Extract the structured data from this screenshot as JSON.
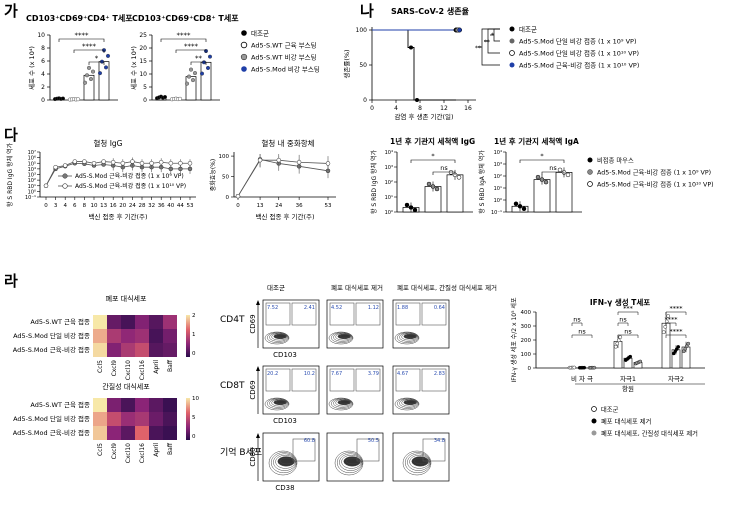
{
  "panels": {
    "ga": {
      "letter": "가",
      "title_left": "CD103⁺CD69⁺CD4⁺ T세포",
      "title_right": "CD103⁺CD69⁺CD8⁺ T세포",
      "ylabel": "세포 수 (x 10⁴)",
      "left_yticks": [
        "0",
        "2",
        "4",
        "6",
        "8",
        "10"
      ],
      "right_yticks": [
        "0",
        "5",
        "10",
        "15",
        "20",
        "25"
      ],
      "legend": [
        "대조군",
        "Ad5-S.WT 근육 부스팅",
        "Ad5-S.WT 비강 부스팅",
        "Ad5-S.Mod 비강 부스팅"
      ],
      "sig_left": [
        "****",
        "****",
        "*"
      ],
      "sig_right": [
        "****",
        "****",
        "**"
      ],
      "chart_data": {
        "type": "bar",
        "categories": [
          "대조군",
          "Ad5-S.WT 근육 부스팅",
          "Ad5-S.WT 비강 부스팅",
          "Ad5-S.Mod 비강 부스팅"
        ],
        "series": [
          {
            "values": [
              0.2,
              0.1,
              3.8,
              5.9
            ]
          },
          {
            "values": [
              1.0,
              0.4,
              9.0,
              14.5
            ]
          }
        ]
      }
    },
    "na": {
      "letter": "나",
      "title": "SARS-CoV-2 생존율",
      "ylabel": "생존률(%)",
      "xlabel": "감염 후 생존 기간(일)",
      "yticks": [
        "0",
        "50",
        "100"
      ],
      "xticks": [
        "0",
        "4",
        "8",
        "12",
        "16"
      ],
      "legend": [
        "대조군",
        "Ad5-S.Mod 단일 비강 접종 (1 x 10⁹ VP)",
        "Ad5-S.Mod 단일 비강 접종 (1 x 10¹⁰ VP)",
        "Ad5-S.Mod 근육-비강 접종 (1 x 10¹⁰ VP)"
      ],
      "sig": [
        "*",
        "**",
        "**"
      ],
      "chart_data": {
        "type": "line",
        "xlabel": "감염 후 생존 기간(일)",
        "ylabel": "생존률(%)",
        "series": [
          {
            "name": "대조군",
            "x": [
              0,
              6,
              6,
              7,
              7,
              14
            ],
            "y": [
              100,
              100,
              75,
              75,
              0,
              0
            ]
          },
          {
            "name": "Ad5-S.Mod 단일 비강 접종 (1 x 10⁹ VP)",
            "x": [
              0,
              14
            ],
            "y": [
              100,
              100
            ]
          },
          {
            "name": "Ad5-S.Mod 단일 비강 접종 (1 x 10¹⁰ VP)",
            "x": [
              0,
              14
            ],
            "y": [
              100,
              100
            ]
          },
          {
            "name": "Ad5-S.Mod 근육-비강 접종 (1 x 10¹⁰ VP)",
            "x": [
              0,
              14
            ],
            "y": [
              100,
              100
            ]
          }
        ]
      }
    },
    "da": {
      "letter": "다",
      "igg_title": "혈청 IgG",
      "igg_ylabel": "항 S RBD IgG 항체 역가",
      "igg_xlabel": "백신 접종 후 기간(주)",
      "igg_xticks": [
        "0",
        "3",
        "4",
        "6",
        "8",
        "10",
        "13",
        "16",
        "20",
        "24",
        "28",
        "32",
        "36",
        "40",
        "44",
        "53"
      ],
      "igg_yticks": [
        "10⁻¹",
        "10⁰",
        "10¹",
        "10²",
        "10³",
        "10⁴",
        "10⁵",
        "10⁶",
        "10⁷"
      ],
      "igg_legend": [
        "Ad5-S.Mod 근육-비강 접종 (1 x 10⁹ VP)",
        "Ad5-S.Mod 근육-비강 접종 (1 x 10¹⁰ VP)"
      ],
      "neut_title": "혈청 내 중화항체",
      "neut_ylabel": "중화효능(%)",
      "neut_xticks": [
        "0",
        "13",
        "24",
        "36",
        "53"
      ],
      "neut_yticks": [
        "0",
        "50",
        "100"
      ],
      "bal_igg_title": "1년 후 기관지 세척액 IgG",
      "bal_igg_ylabel": "항 S RBD IgG 항체 역가",
      "bal_igg_yticks": [
        "10⁰",
        "10¹",
        "10²",
        "10³",
        "10⁴"
      ],
      "bal_iga_title": "1년 후 기관지 세척액 IgA",
      "bal_iga_ylabel": "항 S RBD IgA 항체 역가",
      "bal_iga_yticks": [
        "10⁻¹",
        "10⁰",
        "10¹",
        "10²",
        "10³",
        "10⁴"
      ],
      "bal_legend": [
        "비접종 마우스",
        "Ad5-S.Mod 근육-비강 접종 (1 x 10⁹ VP)",
        "Ad5-S.Mod 근육-비강 접종 (1 x 10¹⁰ VP)"
      ],
      "sig_bal_igg": [
        "*",
        "ns"
      ],
      "sig_bal_iga": [
        "*",
        "ns"
      ],
      "chart_data": [
        {
          "type": "line",
          "title": "혈청 IgG",
          "xlabel": "백신 접종 후 기간(주)",
          "ylabel": "항 S RBD IgG 항체 역가",
          "x": [
            0,
            3,
            4,
            6,
            8,
            10,
            13,
            16,
            20,
            24,
            28,
            32,
            36,
            40,
            44,
            53
          ],
          "series": [
            {
              "name": "Ad5-S.Mod 근육-비강 접종 (1 x 10⁹ VP)",
              "values": [
                10,
                10000,
                30000,
                100000,
                80000,
                40000,
                60000,
                40000,
                20000,
                40000,
                20000,
                20000,
                20000,
                10000,
                10000,
                10000
              ]
            },
            {
              "name": "Ad5-S.Mod 근육-비강 접종 (1 x 10¹⁰ VP)",
              "values": [
                10,
                20000,
                40000,
                200000,
                200000,
                100000,
                200000,
                150000,
                100000,
                200000,
                100000,
                100000,
                150000,
                100000,
                100000,
                100000
              ]
            }
          ]
        },
        {
          "type": "line",
          "title": "혈청 내 중화항체",
          "ylabel": "중화효능(%)",
          "x": [
            0,
            13,
            24,
            36,
            53
          ],
          "series": [
            {
              "values": [
                2,
                92,
                82,
                75,
                64
              ]
            },
            {
              "values": [
                2,
                90,
                90,
                85,
                82
              ]
            }
          ]
        },
        {
          "type": "bar",
          "title": "1년 후 기관지 세척액 IgG",
          "categories": [
            "비접종 마우스",
            "Ad5-S.Mod 근육-비강 접종 (1 x 10⁹ VP)",
            "Ad5-S.Mod 근육-비강 접종 (1 x 10¹⁰ VP)"
          ],
          "values": [
            2,
            50,
            300
          ]
        },
        {
          "type": "bar",
          "title": "1년 후 기관지 세척액 IgA",
          "categories": [
            "비접종 마우스",
            "Ad5-S.Mod 근육-비강 접종 (1 x 10⁹ VP)",
            "Ad5-S.Mod 근육-비강 접종 (1 x 10¹⁰ VP)"
          ],
          "values": [
            0.3,
            50,
            200
          ]
        }
      ]
    },
    "ra": {
      "letter": "라",
      "heat1_title": "폐포 대식세포",
      "heat2_title": "간질성 대식세포",
      "heat_rows1": [
        "Ad5-S.WT 근육 접종",
        "Ad5-S.Mod 단일 비강 접종",
        "Ad5-S.Mod 근육-비강 접종"
      ],
      "heat_rows2": [
        "Ad5-S.WT 근육 접종",
        "Ad5-S.Mod 단일 비강 접종",
        "Ad5-S.Mod 근육-비강 접종"
      ],
      "heat_cols": [
        "Ccl5",
        "Cxcl9",
        "Cxcl10",
        "Cxcl16",
        "April",
        "Baff"
      ],
      "heat1_scale": [
        "2",
        "1",
        "0"
      ],
      "heat2_scale": [
        "10",
        "5",
        "0"
      ],
      "heat1_values": [
        [
          2.2,
          0.4,
          0.2,
          0.6,
          0.3,
          0.8
        ],
        [
          1.8,
          0.9,
          0.7,
          0.8,
          0.2,
          0.5
        ],
        [
          2.1,
          0.6,
          0.9,
          1.1,
          0.3,
          0.4
        ]
      ],
      "heat2_values": [
        [
          10,
          2.5,
          1.0,
          3.0,
          1.5,
          0.5
        ],
        [
          8.0,
          5.0,
          3.5,
          4.0,
          2.0,
          1.0
        ],
        [
          9.0,
          3.0,
          1.5,
          6.0,
          1.0,
          0.5
        ]
      ],
      "flow_cols": [
        "대조군",
        "폐포 대식세포 제거",
        "폐포 대식세포, 간질성 대식세포 제거"
      ],
      "flow_rows": [
        "CD4T",
        "CD8T",
        "기억 B세포"
      ],
      "flow_xlabels": [
        "CD103",
        "CD103",
        "CD38"
      ],
      "flow_ylabels": [
        "CD69",
        "CD69",
        "CD80"
      ],
      "flow_numbers": [
        [
          "7.52",
          "2.41"
        ],
        [
          "4.52",
          "1.12"
        ],
        [
          "1.88",
          "0.64"
        ],
        [
          "20.2",
          "10.2"
        ],
        [
          "7.67",
          "3.79"
        ],
        [
          "4.67",
          "2.83"
        ],
        [
          "",
          "60.8"
        ],
        [
          "",
          "50.5"
        ],
        [
          "",
          "34.8"
        ]
      ],
      "ifn_title": "IFN-γ 생성 T세포",
      "ifn_ylabel": "IFN-γ 생성 세포 수/2 x 10⁵ 세포",
      "ifn_yticks": [
        "0",
        "100",
        "200",
        "300",
        "400"
      ],
      "ifn_groups": [
        "비 자 극",
        "자극1",
        "자극2"
      ],
      "ifn_xgroup": "항원",
      "ifn_sig": [
        "ns",
        "ns",
        "ns",
        "ns",
        "***",
        "****",
        "****",
        "****"
      ],
      "ifn_legend": [
        "대조군",
        "폐포 대식세포 제거",
        "폐포 대식세포, 간질성 대식세포 제거"
      ],
      "chart_data": {
        "type": "bar",
        "title": "IFN-γ 생성 T세포",
        "categories": [
          "비 자 극",
          "자극1",
          "자극2"
        ],
        "series": [
          {
            "name": "대조군",
            "values": [
              3,
              190,
              320
            ]
          },
          {
            "name": "폐포 대식세포 제거",
            "values": [
              2,
              70,
              130
            ]
          },
          {
            "name": "폐포 대식세포, 간질성 대식세포 제거",
            "values": [
              2,
              40,
              150
            ]
          }
        ]
      }
    }
  }
}
